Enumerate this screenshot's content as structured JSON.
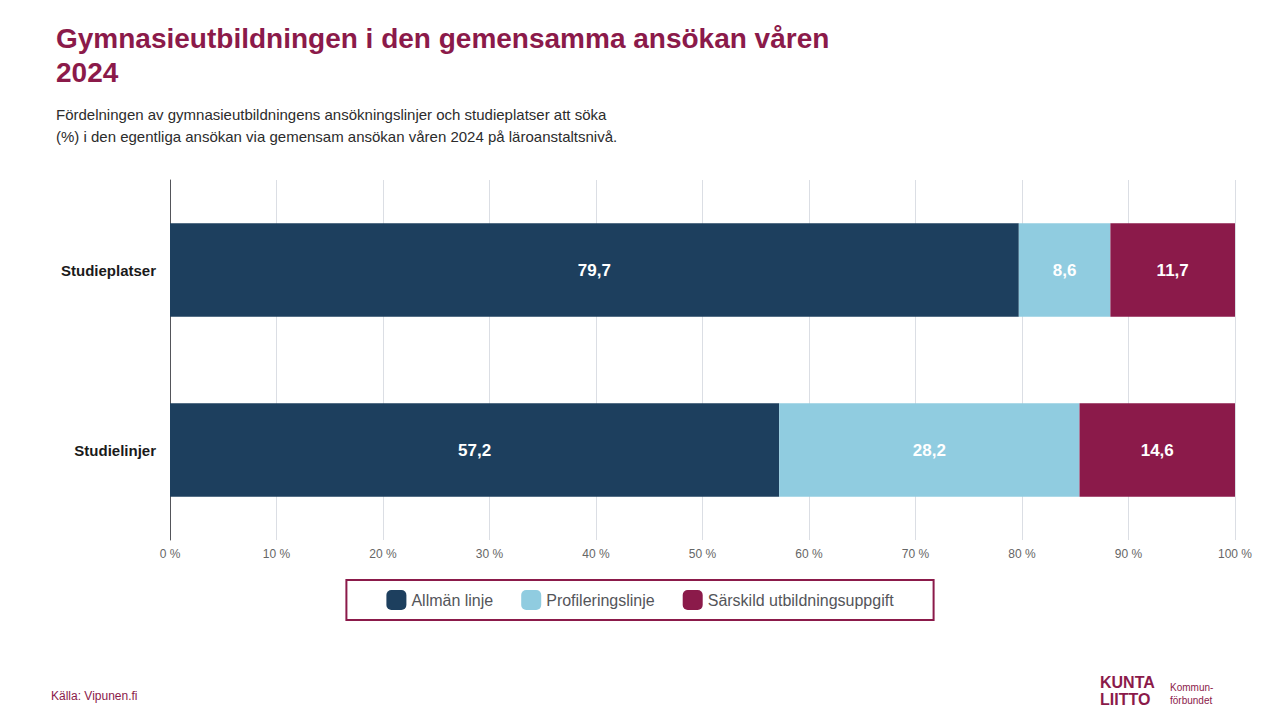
{
  "chart_data": {
    "type": "bar",
    "orientation": "horizontal",
    "stacked": true,
    "title": "Gymnasieutbildningen i den gemensamma ansökan våren\n2024",
    "subtitle": "Fördelningen av gymnasieutbildningens ansökningslinjer och studieplatser att söka\n(%) i den egentliga ansökan via gemensam ansökan våren 2024 på läroanstaltsnivå.",
    "categories": [
      "Studieplatser",
      "Studielinjer"
    ],
    "series": [
      {
        "name": "Allmän linje",
        "color": "#1d3f5e",
        "values": [
          79.7,
          57.2
        ],
        "value_labels": [
          "79,7",
          "57,2"
        ]
      },
      {
        "name": "Profileringslinje",
        "color": "#90cce0",
        "values": [
          8.6,
          28.2
        ],
        "value_labels": [
          "8,6",
          "28,2"
        ]
      },
      {
        "name": "Särskild utbildningsuppgift",
        "color": "#8b1a4a",
        "values": [
          11.7,
          14.6
        ],
        "value_labels": [
          "11,7",
          "14,6"
        ]
      }
    ],
    "data_labels": true,
    "xlim": [
      0,
      100
    ],
    "xticks": [
      {
        "value": 0,
        "label": "0 %"
      },
      {
        "value": 10,
        "label": "10 %"
      },
      {
        "value": 20,
        "label": "20 %"
      },
      {
        "value": 30,
        "label": "30 %"
      },
      {
        "value": 40,
        "label": "40 %"
      },
      {
        "value": 50,
        "label": "50 %"
      },
      {
        "value": 60,
        "label": "60 %"
      },
      {
        "value": 70,
        "label": "70 %"
      },
      {
        "value": 80,
        "label": "80 %"
      },
      {
        "value": 90,
        "label": "90 %"
      },
      {
        "value": 100,
        "label": "100 %"
      }
    ],
    "grid": true,
    "legend": "bottom",
    "annotations": [
      "Källa: Vipunen.fi",
      "KUNTA\nLIITTO",
      "Kommun-\nförbundet"
    ]
  }
}
